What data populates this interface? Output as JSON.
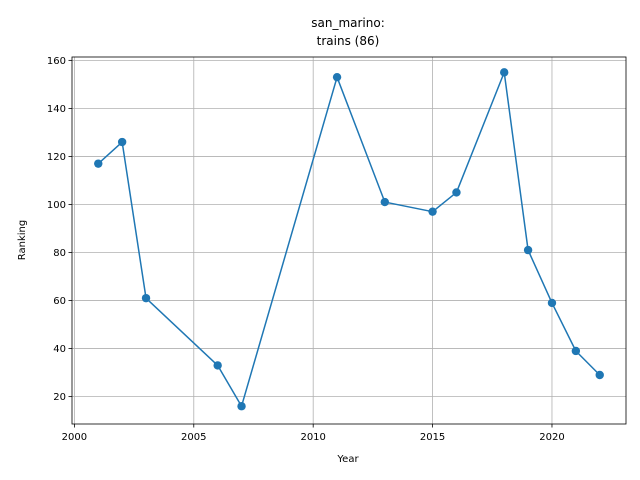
{
  "chart_data": {
    "type": "line",
    "title_line1": "san_marino:",
    "title_line2": "trains (86)",
    "xlabel": "Year",
    "ylabel": "Ranking",
    "xlim": [
      1999.9,
      2023.1
    ],
    "ylim": [
      8.6,
      161.4
    ],
    "xticks": [
      2000,
      2005,
      2010,
      2015,
      2020
    ],
    "yticks": [
      20,
      40,
      60,
      80,
      100,
      120,
      140,
      160
    ],
    "grid": true,
    "series": [
      {
        "color": "#1f77b4",
        "marker": "circle",
        "x": [
          2001,
          2002,
          2003,
          2006,
          2007,
          2011,
          2013,
          2015,
          2016,
          2018,
          2019,
          2020,
          2021,
          2022
        ],
        "y": [
          117,
          126,
          61,
          33,
          16,
          153,
          101,
          97,
          105,
          155,
          81,
          59,
          39,
          29
        ]
      }
    ]
  }
}
